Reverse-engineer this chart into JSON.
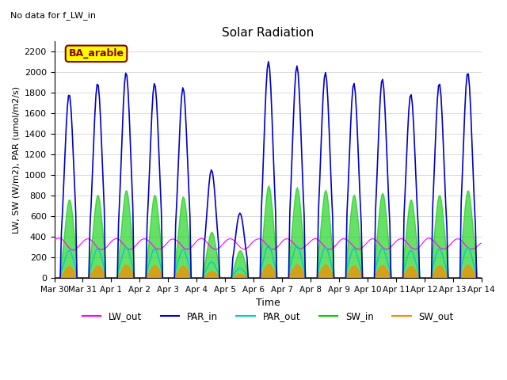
{
  "title": "Solar Radiation",
  "subtitle": "No data for f_LW_in",
  "annotation": "BA_arable",
  "xlabel": "Time",
  "ylabel": "LW, SW (W/m2), PAR (umol/m2/s)",
  "ylim": [
    0,
    2300
  ],
  "yticks": [
    0,
    200,
    400,
    600,
    800,
    1000,
    1200,
    1400,
    1600,
    1800,
    2000,
    2200
  ],
  "xtick_labels": [
    "Mar 30",
    "Mar 31",
    "Apr 1",
    "Apr 2",
    "Apr 3",
    "Apr 4",
    "Apr 5",
    "Apr 6",
    "Apr 7",
    "Apr 8",
    "Apr 9",
    "Apr 10",
    "Apr 11",
    "Apr 12",
    "Apr 13",
    "Apr 14"
  ],
  "n_days": 15,
  "colors": {
    "LW_out": "#ff00ff",
    "PAR_in": "#0000cd",
    "PAR_out": "#00cccc",
    "SW_in": "#00cc00",
    "SW_out": "#ff8800"
  },
  "background_color": "#ffffff",
  "grid_color": "#cccccc"
}
